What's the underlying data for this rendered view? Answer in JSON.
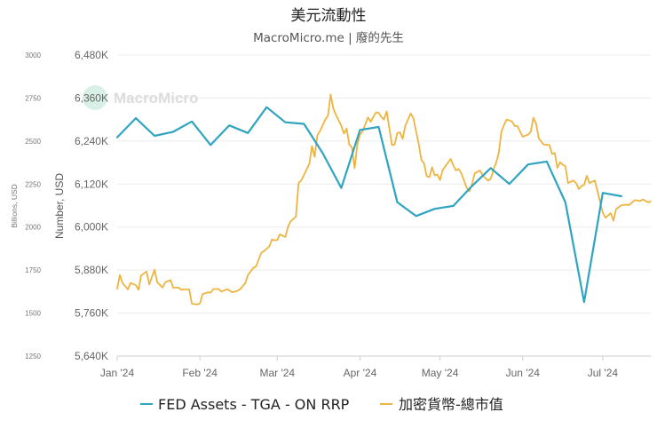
{
  "chart_data": {
    "type": "line",
    "title": "美元流動性",
    "subtitle": "MacroMicro.me | 廢的先生",
    "watermark": "MacroMicro",
    "y_left": {
      "label": "Billions, USD",
      "ticks": [
        "3000",
        "2750",
        "2500",
        "2250",
        "2000",
        "1750",
        "1500",
        "1250"
      ],
      "range": [
        1250,
        3000
      ]
    },
    "y_right": {
      "label": "Number, USD",
      "ticks": [
        "6,480K",
        "6,360K",
        "6,240K",
        "6,120K",
        "6,000K",
        "5,880K",
        "5,760K",
        "5,640K"
      ],
      "range": [
        5640,
        6480
      ],
      "unit": "K"
    },
    "x_axis": {
      "ticks": [
        "Jan '24",
        "Feb '24",
        "Mar '24",
        "Apr '24",
        "May '24",
        "Jun '24",
        "Jul '24"
      ],
      "tick_dates": [
        "2024-01-01",
        "2024-02-01",
        "2024-03-01",
        "2024-04-01",
        "2024-05-01",
        "2024-06-01",
        "2024-07-01"
      ],
      "range": [
        "2024-01-01",
        "2024-07-19"
      ]
    },
    "grid": true,
    "legend_position": "bottom",
    "series": [
      {
        "name": "FED Assets - TGA - ON RRP",
        "axis": "left",
        "color": "#2fa4c1",
        "points": [
          [
            "2024-01-01",
            2522
          ],
          [
            "2024-01-08",
            2633
          ],
          [
            "2024-01-15",
            2530
          ],
          [
            "2024-01-22",
            2554
          ],
          [
            "2024-01-29",
            2614
          ],
          [
            "2024-02-05",
            2477
          ],
          [
            "2024-02-12",
            2591
          ],
          [
            "2024-02-19",
            2547
          ],
          [
            "2024-02-26",
            2697
          ],
          [
            "2024-03-04",
            2609
          ],
          [
            "2024-03-11",
            2600
          ],
          [
            "2024-03-18",
            2430
          ],
          [
            "2024-03-25",
            2227
          ],
          [
            "2024-04-01",
            2565
          ],
          [
            "2024-04-08",
            2582
          ],
          [
            "2024-04-15",
            2144
          ],
          [
            "2024-04-22",
            2064
          ],
          [
            "2024-04-29",
            2106
          ],
          [
            "2024-05-06",
            2123
          ],
          [
            "2024-05-13",
            2239
          ],
          [
            "2024-05-20",
            2343
          ],
          [
            "2024-05-27",
            2251
          ],
          [
            "2024-06-03",
            2364
          ],
          [
            "2024-06-10",
            2381
          ],
          [
            "2024-06-17",
            2144
          ],
          [
            "2024-06-24",
            1564
          ],
          [
            "2024-07-01",
            2199
          ],
          [
            "2024-07-08",
            2179
          ]
        ]
      },
      {
        "name": "加密貨幣-總市值",
        "axis": "right",
        "color": "#eeb43f",
        "points": [
          [
            "2024-01-01",
            5828
          ],
          [
            "2024-01-02",
            5866
          ],
          [
            "2024-01-03",
            5844
          ],
          [
            "2024-01-05",
            5826
          ],
          [
            "2024-01-06",
            5844
          ],
          [
            "2024-01-08",
            5838
          ],
          [
            "2024-01-09",
            5825
          ],
          [
            "2024-01-10",
            5865
          ],
          [
            "2024-01-12",
            5876
          ],
          [
            "2024-01-13",
            5840
          ],
          [
            "2024-01-15",
            5881
          ],
          [
            "2024-01-16",
            5846
          ],
          [
            "2024-01-18",
            5831
          ],
          [
            "2024-01-19",
            5846
          ],
          [
            "2024-01-21",
            5852
          ],
          [
            "2024-01-22",
            5831
          ],
          [
            "2024-01-24",
            5831
          ],
          [
            "2024-01-25",
            5825
          ],
          [
            "2024-01-26",
            5826
          ],
          [
            "2024-01-28",
            5826
          ],
          [
            "2024-01-29",
            5786
          ],
          [
            "2024-01-31",
            5784
          ],
          [
            "2024-02-01",
            5787
          ],
          [
            "2024-02-02",
            5813
          ],
          [
            "2024-02-04",
            5818
          ],
          [
            "2024-02-05",
            5817
          ],
          [
            "2024-02-06",
            5827
          ],
          [
            "2024-02-08",
            5827
          ],
          [
            "2024-02-09",
            5820
          ],
          [
            "2024-02-11",
            5826
          ],
          [
            "2024-02-12",
            5824
          ],
          [
            "2024-02-13",
            5818
          ],
          [
            "2024-02-15",
            5822
          ],
          [
            "2024-02-16",
            5826
          ],
          [
            "2024-02-18",
            5843
          ],
          [
            "2024-02-19",
            5866
          ],
          [
            "2024-02-21",
            5886
          ],
          [
            "2024-02-22",
            5890
          ],
          [
            "2024-02-24",
            5928
          ],
          [
            "2024-02-25",
            5933
          ],
          [
            "2024-02-27",
            5946
          ],
          [
            "2024-02-28",
            5965
          ],
          [
            "2024-02-29",
            5963
          ],
          [
            "2024-03-01",
            5964
          ],
          [
            "2024-03-02",
            5980
          ],
          [
            "2024-03-04",
            5972
          ],
          [
            "2024-03-05",
            6000
          ],
          [
            "2024-03-06",
            6016
          ],
          [
            "2024-03-08",
            6029
          ],
          [
            "2024-03-09",
            6123
          ],
          [
            "2024-03-10",
            6130
          ],
          [
            "2024-03-12",
            6161
          ],
          [
            "2024-03-13",
            6176
          ],
          [
            "2024-03-14",
            6226
          ],
          [
            "2024-03-15",
            6196
          ],
          [
            "2024-03-16",
            6256
          ],
          [
            "2024-03-17",
            6268
          ],
          [
            "2024-03-19",
            6300
          ],
          [
            "2024-03-20",
            6311
          ],
          [
            "2024-03-21",
            6370
          ],
          [
            "2024-03-22",
            6331
          ],
          [
            "2024-03-23",
            6313
          ],
          [
            "2024-03-25",
            6283
          ],
          [
            "2024-03-26",
            6261
          ],
          [
            "2024-03-27",
            6275
          ],
          [
            "2024-03-28",
            6230
          ],
          [
            "2024-03-29",
            6222
          ],
          [
            "2024-03-30",
            6164
          ],
          [
            "2024-03-31",
            6229
          ],
          [
            "2024-04-01",
            6258
          ],
          [
            "2024-04-02",
            6268
          ],
          [
            "2024-04-04",
            6306
          ],
          [
            "2024-04-05",
            6294
          ],
          [
            "2024-04-07",
            6320
          ],
          [
            "2024-04-08",
            6319
          ],
          [
            "2024-04-09",
            6307
          ],
          [
            "2024-04-10",
            6300
          ],
          [
            "2024-04-11",
            6323
          ],
          [
            "2024-04-13",
            6229
          ],
          [
            "2024-04-14",
            6230
          ],
          [
            "2024-04-15",
            6263
          ],
          [
            "2024-04-16",
            6264
          ],
          [
            "2024-04-17",
            6246
          ],
          [
            "2024-04-18",
            6283
          ],
          [
            "2024-04-20",
            6317
          ],
          [
            "2024-04-21",
            6304
          ],
          [
            "2024-04-23",
            6232
          ],
          [
            "2024-04-24",
            6187
          ],
          [
            "2024-04-25",
            6178
          ],
          [
            "2024-04-26",
            6142
          ],
          [
            "2024-04-27",
            6139
          ],
          [
            "2024-04-28",
            6167
          ],
          [
            "2024-04-29",
            6144
          ],
          [
            "2024-04-30",
            6147
          ],
          [
            "2024-05-01",
            6131
          ],
          [
            "2024-05-02",
            6159
          ],
          [
            "2024-05-04",
            6180
          ],
          [
            "2024-05-05",
            6190
          ],
          [
            "2024-05-06",
            6172
          ],
          [
            "2024-05-07",
            6158
          ],
          [
            "2024-05-08",
            6162
          ],
          [
            "2024-05-09",
            6150
          ],
          [
            "2024-05-11",
            6109
          ],
          [
            "2024-05-12",
            6100
          ],
          [
            "2024-05-13",
            6120
          ],
          [
            "2024-05-14",
            6150
          ],
          [
            "2024-05-16",
            6158
          ],
          [
            "2024-05-17",
            6144
          ],
          [
            "2024-05-19",
            6130
          ],
          [
            "2024-05-20",
            6134
          ],
          [
            "2024-05-21",
            6160
          ],
          [
            "2024-05-22",
            6179
          ],
          [
            "2024-05-23",
            6206
          ],
          [
            "2024-05-24",
            6266
          ],
          [
            "2024-05-25",
            6285
          ],
          [
            "2024-05-26",
            6300
          ],
          [
            "2024-05-28",
            6295
          ],
          [
            "2024-05-29",
            6282
          ],
          [
            "2024-05-30",
            6282
          ],
          [
            "2024-05-31",
            6267
          ],
          [
            "2024-06-01",
            6252
          ],
          [
            "2024-06-03",
            6258
          ],
          [
            "2024-06-04",
            6266
          ],
          [
            "2024-06-05",
            6305
          ],
          [
            "2024-06-06",
            6289
          ],
          [
            "2024-06-07",
            6248
          ],
          [
            "2024-06-08",
            6238
          ],
          [
            "2024-06-09",
            6230
          ],
          [
            "2024-06-11",
            6229
          ],
          [
            "2024-06-12",
            6204
          ],
          [
            "2024-06-13",
            6207
          ],
          [
            "2024-06-14",
            6165
          ],
          [
            "2024-06-15",
            6181
          ],
          [
            "2024-06-16",
            6174
          ],
          [
            "2024-06-17",
            6170
          ],
          [
            "2024-06-18",
            6123
          ],
          [
            "2024-06-20",
            6130
          ],
          [
            "2024-06-21",
            6123
          ],
          [
            "2024-06-22",
            6106
          ],
          [
            "2024-06-23",
            6114
          ],
          [
            "2024-06-24",
            6118
          ],
          [
            "2024-06-25",
            6143
          ],
          [
            "2024-06-26",
            6123
          ],
          [
            "2024-06-28",
            6130
          ],
          [
            "2024-06-29",
            6101
          ],
          [
            "2024-07-01",
            6040
          ],
          [
            "2024-07-02",
            6026
          ],
          [
            "2024-07-04",
            6039
          ],
          [
            "2024-07-05",
            6018
          ],
          [
            "2024-07-06",
            6050
          ],
          [
            "2024-07-08",
            6061
          ],
          [
            "2024-07-09",
            6062
          ],
          [
            "2024-07-11",
            6062
          ],
          [
            "2024-07-12",
            6069
          ],
          [
            "2024-07-13",
            6075
          ],
          [
            "2024-07-15",
            6073
          ],
          [
            "2024-07-16",
            6077
          ],
          [
            "2024-07-18",
            6069
          ],
          [
            "2024-07-19",
            6072
          ]
        ]
      }
    ]
  }
}
